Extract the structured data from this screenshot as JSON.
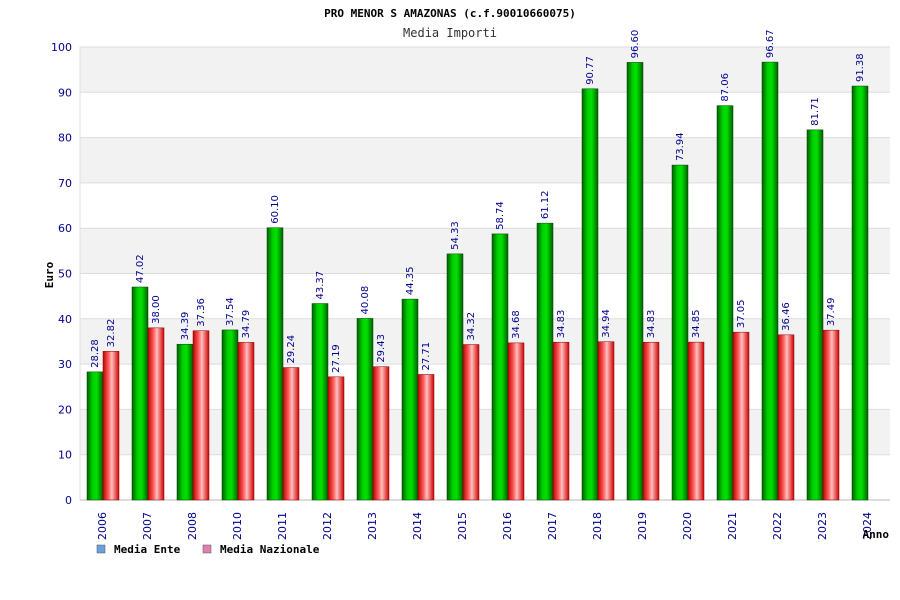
{
  "chart_data": {
    "type": "bar",
    "title": "PRO MENOR S AMAZONAS (c.f.90010660075)",
    "subtitle": "Media Importi",
    "xlabel": "Anno",
    "ylabel": "Euro",
    "ylim": [
      0,
      100
    ],
    "yticks": [
      0,
      10,
      20,
      30,
      40,
      50,
      60,
      70,
      80,
      90,
      100
    ],
    "grid": true,
    "legend_position": "bottom-left",
    "categories": [
      "2006",
      "2007",
      "2008",
      "2010",
      "2011",
      "2012",
      "2013",
      "2014",
      "2015",
      "2016",
      "2017",
      "2018",
      "2019",
      "2020",
      "2021",
      "2022",
      "2023",
      "2024"
    ],
    "series": [
      {
        "name": "Media Ente",
        "color": "#00c000",
        "values": [
          28.28,
          47.02,
          34.39,
          37.54,
          60.1,
          43.37,
          40.08,
          44.35,
          54.33,
          58.74,
          61.12,
          90.77,
          96.6,
          73.94,
          87.06,
          96.67,
          81.71,
          91.38
        ],
        "labels": [
          "28.28",
          "47.02",
          "34.39",
          "37.54",
          "60.10",
          "43.37",
          "40.08",
          "44.35",
          "54.33",
          "58.74",
          "61.12",
          "90.77",
          "96.60",
          "73.94",
          "87.06",
          "96.67",
          "81.71",
          "91.38"
        ]
      },
      {
        "name": "Media Nazionale",
        "color": "#e00000",
        "values": [
          32.82,
          38.0,
          37.36,
          34.79,
          29.24,
          27.19,
          29.43,
          27.71,
          34.32,
          34.68,
          34.83,
          34.94,
          34.83,
          34.85,
          37.05,
          36.46,
          37.49,
          null
        ],
        "labels": [
          "32.82",
          "38.00",
          "37.36",
          "34.79",
          "29.24",
          "27.19",
          "29.43",
          "27.71",
          "34.32",
          "34.68",
          "34.83",
          "34.94",
          "34.83",
          "34.85",
          "37.05",
          "36.46",
          "37.49",
          null
        ]
      }
    ],
    "legend": [
      {
        "label": "Media Ente",
        "swatch": "#6aa0e0"
      },
      {
        "label": "Media Nazionale",
        "swatch": "#e080b0"
      }
    ]
  }
}
